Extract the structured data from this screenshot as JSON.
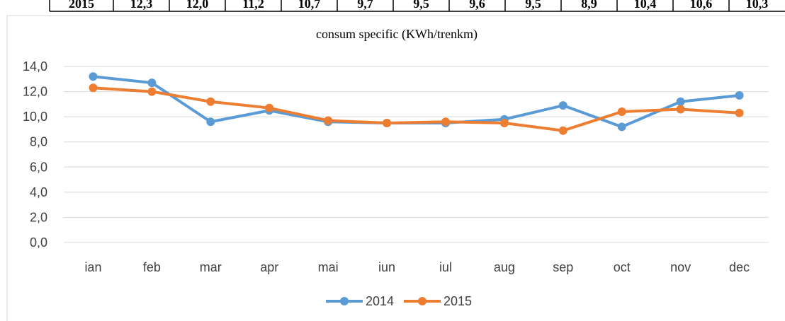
{
  "table": {
    "rows": [
      [
        "2015",
        "12,3",
        "12,0",
        "11,2",
        "10,7",
        "9,7",
        "9,5",
        "9,6",
        "9,5",
        "8,9",
        "10,4",
        "10,6",
        "10,3"
      ]
    ]
  },
  "chart_data": {
    "type": "line",
    "title": "consum specific (KWh/trenkm)",
    "categories": [
      "ian",
      "feb",
      "mar",
      "apr",
      "mai",
      "iun",
      "iul",
      "aug",
      "sep",
      "oct",
      "nov",
      "dec"
    ],
    "series": [
      {
        "name": "2014",
        "color": "#5b9bd5",
        "values": [
          13.2,
          12.7,
          9.6,
          10.5,
          9.6,
          9.5,
          9.5,
          9.8,
          10.9,
          9.2,
          11.2,
          11.7
        ]
      },
      {
        "name": "2015",
        "color": "#ed7d31",
        "values": [
          12.3,
          12.0,
          11.2,
          10.7,
          9.7,
          9.5,
          9.6,
          9.5,
          8.9,
          10.4,
          10.6,
          10.3
        ]
      }
    ],
    "ylim": [
      0,
      14
    ],
    "yticks": [
      {
        "value": 0,
        "label": "0,0"
      },
      {
        "value": 2,
        "label": "2,0"
      },
      {
        "value": 4,
        "label": "4,0"
      },
      {
        "value": 6,
        "label": "6,0"
      },
      {
        "value": 8,
        "label": "8,0"
      },
      {
        "value": 10,
        "label": "10,0"
      },
      {
        "value": 12,
        "label": "12,0"
      },
      {
        "value": 14,
        "label": "14,0"
      }
    ],
    "grid": true,
    "legend": "bottom"
  }
}
